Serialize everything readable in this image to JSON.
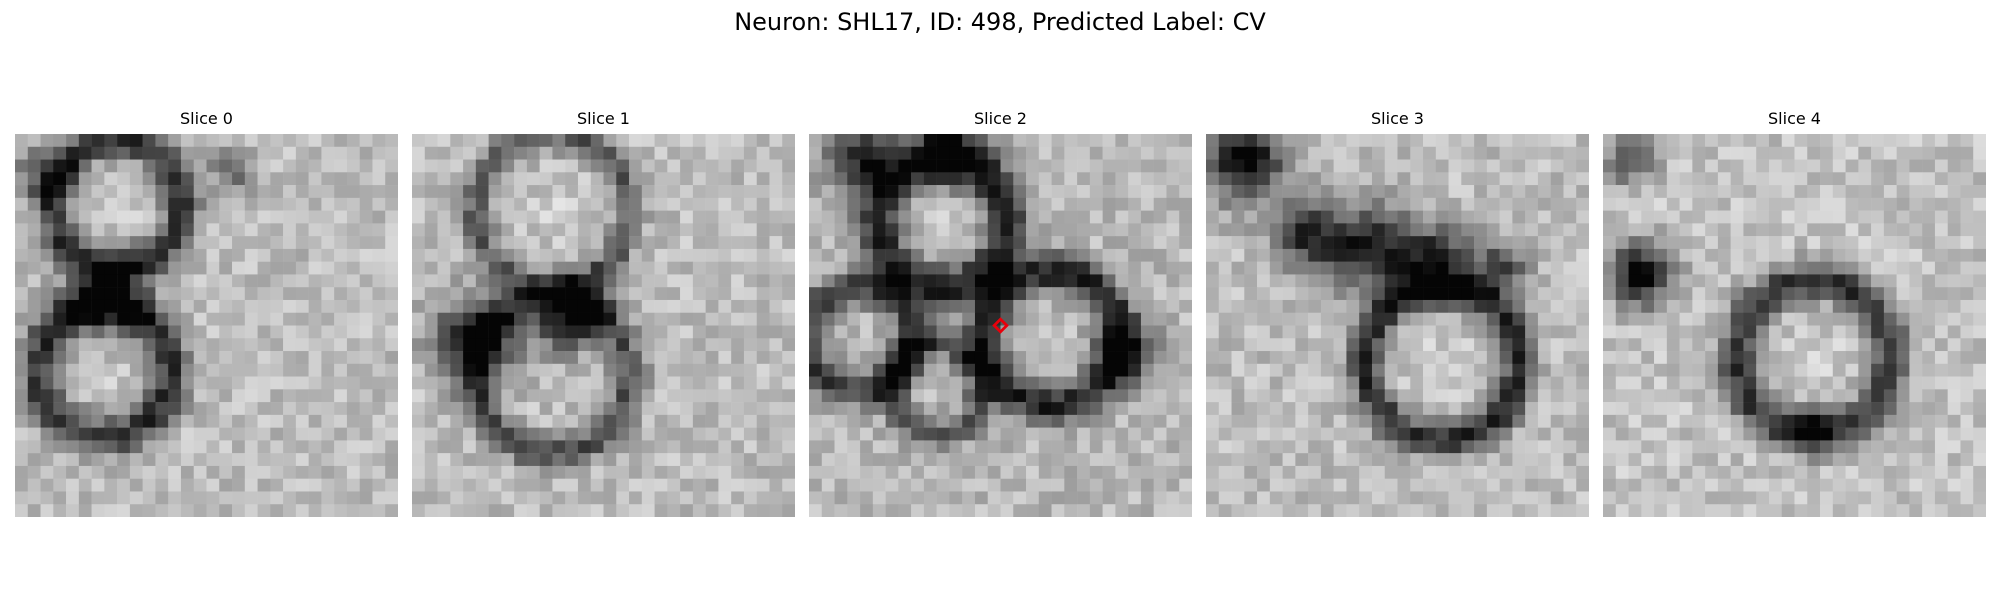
{
  "figure": {
    "title": "Neuron: SHL17, ID: 498, Predicted Label: CV"
  },
  "panels": [
    {
      "title": "Slice 0",
      "marker": false
    },
    {
      "title": "Slice 1",
      "marker": false
    },
    {
      "title": "Slice 2",
      "marker": true
    },
    {
      "title": "Slice 3",
      "marker": false
    },
    {
      "title": "Slice 4",
      "marker": false
    }
  ],
  "colors": {
    "marker": "#e8000b",
    "background": "#ffffff"
  },
  "colormap": "gray"
}
